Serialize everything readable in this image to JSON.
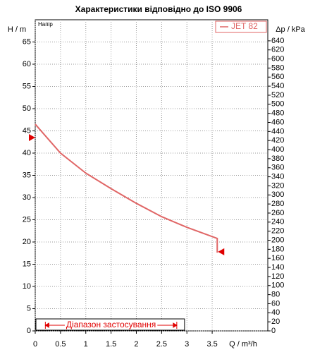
{
  "chart_data": {
    "type": "line",
    "title": "Характеристики відповідно до ISO 9906",
    "y_label": "H / m",
    "y2_label": "Δp / kPa",
    "x_label": "Q / m³/h",
    "annotation": "Напір",
    "xlim": [
      0,
      4.6
    ],
    "xticks": [
      0,
      0.5,
      1,
      1.5,
      2,
      2.5,
      3,
      3.5
    ],
    "ylim": [
      0,
      70
    ],
    "yticks": [
      0,
      5,
      10,
      15,
      20,
      25,
      30,
      35,
      40,
      45,
      50,
      55,
      60,
      65
    ],
    "y2lim": [
      0,
      686.5
    ],
    "y2ticks": [
      0,
      20,
      40,
      60,
      80,
      100,
      120,
      140,
      160,
      180,
      200,
      220,
      240,
      260,
      280,
      300,
      320,
      340,
      360,
      380,
      400,
      420,
      440,
      460,
      480,
      500,
      520,
      540,
      560,
      580,
      600,
      620,
      640
    ],
    "grid": true,
    "legend": "top-right",
    "series": [
      {
        "name": "JET 82",
        "color": "#e06666",
        "x": [
          0,
          0.5,
          1,
          1.5,
          2,
          2.5,
          3,
          3.6,
          3.6
        ],
        "values": [
          46.5,
          40,
          35.5,
          32,
          28.7,
          25.7,
          23.3,
          20.8,
          17.6
        ]
      }
    ],
    "markers": {
      "color": "#e00000",
      "x": [
        0,
        3.6
      ],
      "y": [
        43.5,
        17.8
      ]
    },
    "range": {
      "label": "Діапазон застосування",
      "x": [
        0.2,
        2.8
      ]
    }
  }
}
